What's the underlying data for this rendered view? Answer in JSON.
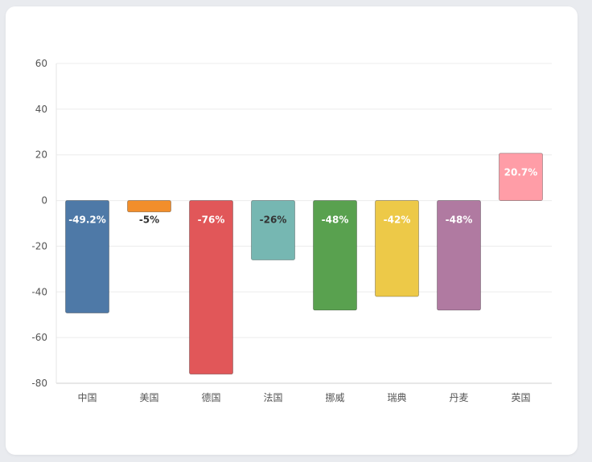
{
  "chart_data": {
    "type": "bar",
    "categories": [
      "中国",
      "美国",
      "德国",
      "法国",
      "挪威",
      "瑞典",
      "丹麦",
      "英国"
    ],
    "values": [
      -49.2,
      -5,
      -76,
      -26,
      -48,
      -42,
      -48,
      20.7
    ],
    "labels": [
      "-49.2%",
      "-5%",
      "-76%",
      "-26%",
      "-48%",
      "-42%",
      "-48%",
      "20.7%"
    ],
    "colors": [
      "#4e79a7",
      "#f28e2b",
      "#e15759",
      "#76b7b2",
      "#59a14f",
      "#edc948",
      "#b07aa1",
      "#ff9da7"
    ],
    "label_colors": [
      "#ffffff",
      "#333333",
      "#ffffff",
      "#333333",
      "#ffffff",
      "#ffffff",
      "#ffffff",
      "#ffffff"
    ],
    "ylim": [
      -80,
      60
    ],
    "yticks": [
      60,
      40,
      20,
      0,
      -20,
      -40,
      -60,
      -80
    ],
    "grid": true,
    "title": "",
    "xlabel": "",
    "ylabel": ""
  }
}
